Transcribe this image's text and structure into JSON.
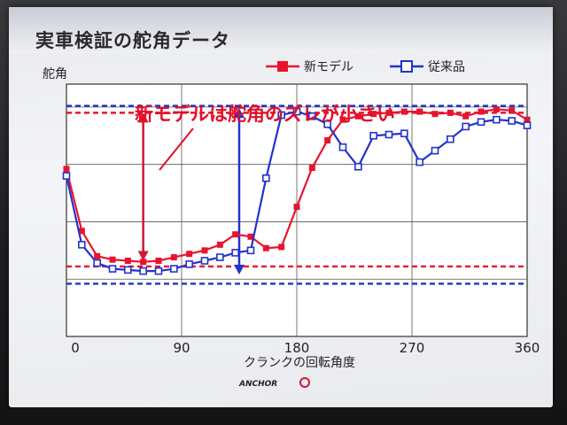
{
  "slide": {
    "title": "実車検証の舵角データ",
    "logo_text": "ANCHOR"
  },
  "chart_data": {
    "type": "line",
    "ylabel": "舵角",
    "xlabel": "クランクの回転角度",
    "xlim": [
      0,
      360
    ],
    "x_ticks": [
      "0",
      "90",
      "180",
      "270",
      "360"
    ],
    "grid": true,
    "legend_position": "top-right",
    "annotation": "新モデルは舵角のズレが小さい",
    "series": [
      {
        "name": "新モデル",
        "color": "#e8142e",
        "marker": "filled-square",
        "x": [
          0,
          12,
          24,
          36,
          48,
          60,
          72,
          84,
          96,
          108,
          120,
          132,
          144,
          156,
          168,
          180,
          192,
          204,
          216,
          228,
          240,
          252,
          264,
          276,
          288,
          300,
          312,
          324,
          336,
          348,
          360
        ],
        "y": [
          14.6,
          9.2,
          7.0,
          6.7,
          6.6,
          6.5,
          6.6,
          6.9,
          7.2,
          7.5,
          8.0,
          8.9,
          8.7,
          7.7,
          7.8,
          11.3,
          14.7,
          17.1,
          18.9,
          19.2,
          19.4,
          19.5,
          19.6,
          19.6,
          19.4,
          19.5,
          19.2,
          19.6,
          19.8,
          19.7,
          18.9
        ]
      },
      {
        "name": "従来品",
        "color": "#2233cc",
        "marker": "open-square",
        "x": [
          0,
          12,
          24,
          36,
          48,
          60,
          72,
          84,
          96,
          108,
          120,
          132,
          144,
          156,
          168,
          180,
          192,
          204,
          216,
          228,
          240,
          252,
          264,
          276,
          288,
          300,
          312,
          324,
          336,
          348,
          360
        ],
        "y": [
          14.0,
          8.0,
          6.4,
          5.9,
          5.8,
          5.7,
          5.7,
          5.9,
          6.3,
          6.6,
          6.9,
          7.3,
          7.5,
          13.8,
          19.3,
          19.6,
          19.2,
          18.5,
          16.5,
          14.8,
          17.5,
          17.6,
          17.7,
          15.2,
          16.2,
          17.2,
          18.3,
          18.7,
          18.9,
          18.8,
          18.4
        ]
      }
    ],
    "reference_lines": [
      {
        "series": "新モデル",
        "color": "#e8142e",
        "y": [
          6.1,
          19.5
        ]
      },
      {
        "series": "従来品",
        "color": "#2233cc",
        "y": [
          4.6,
          20.1
        ]
      }
    ],
    "range_arrows": [
      {
        "series": "新モデル",
        "color": "#d01834",
        "x": 60,
        "y": [
          6.6,
          19.5
        ]
      },
      {
        "series": "従来品",
        "color": "#2233cc",
        "x": 135,
        "y": [
          5.4,
          19.9
        ]
      }
    ]
  }
}
